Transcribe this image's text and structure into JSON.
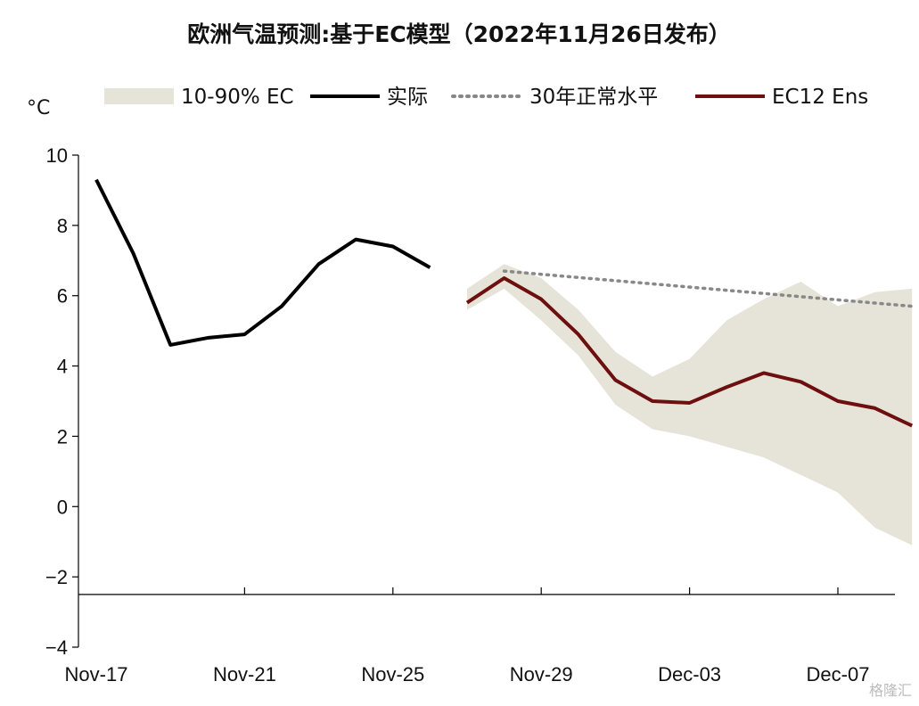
{
  "chart_data": {
    "type": "line",
    "title": "欧洲气温预测:基于EC模型（2022年11月26日发布）",
    "ylabel": "°C",
    "ylim": [
      -4,
      10
    ],
    "yticks": [
      10,
      8,
      6,
      4,
      2,
      0,
      -2,
      -4
    ],
    "x_start": "2022-11-17",
    "x_end": "2022-12-09",
    "xticks": [
      {
        "date": "2022-11-17",
        "label": "Nov-17"
      },
      {
        "date": "2022-11-21",
        "label": "Nov-21"
      },
      {
        "date": "2022-11-25",
        "label": "Nov-25"
      },
      {
        "date": "2022-11-29",
        "label": "Nov-29"
      },
      {
        "date": "2022-12-03",
        "label": "Dec-03"
      },
      {
        "date": "2022-12-07",
        "label": "Dec-07"
      }
    ],
    "legend_position": "top",
    "grid": false,
    "band": {
      "name": "10-90% EC",
      "color": "#e6e3d8",
      "x": [
        "2022-11-27",
        "2022-11-28",
        "2022-11-29",
        "2022-11-30",
        "2022-12-01",
        "2022-12-02",
        "2022-12-03",
        "2022-12-04",
        "2022-12-05",
        "2022-12-06",
        "2022-12-07",
        "2022-12-08",
        "2022-12-09"
      ],
      "upper": [
        6.2,
        6.9,
        6.5,
        5.6,
        4.4,
        3.7,
        4.2,
        5.3,
        5.9,
        6.4,
        5.7,
        6.1,
        6.2
      ],
      "lower": [
        5.6,
        6.2,
        5.3,
        4.3,
        2.9,
        2.2,
        2.0,
        1.7,
        1.4,
        0.9,
        0.4,
        -0.6,
        -1.1
      ]
    },
    "series": [
      {
        "name": "实际",
        "color": "#000000",
        "style": "solid",
        "x": [
          "2022-11-17",
          "2022-11-18",
          "2022-11-19",
          "2022-11-20",
          "2022-11-21",
          "2022-11-22",
          "2022-11-23",
          "2022-11-24",
          "2022-11-25",
          "2022-11-26"
        ],
        "values": [
          9.3,
          7.2,
          4.6,
          4.8,
          4.9,
          5.7,
          6.9,
          7.6,
          7.4,
          6.8
        ]
      },
      {
        "name": "30年正常水平",
        "color": "#888888",
        "style": "dotted",
        "x": [
          "2022-11-28",
          "2022-12-09"
        ],
        "values": [
          6.7,
          5.7
        ]
      },
      {
        "name": "EC12 Ens",
        "color": "#6e0f0f",
        "style": "solid",
        "x": [
          "2022-11-27",
          "2022-11-28",
          "2022-11-29",
          "2022-11-30",
          "2022-12-01",
          "2022-12-02",
          "2022-12-03",
          "2022-12-04",
          "2022-12-05",
          "2022-12-06",
          "2022-12-07",
          "2022-12-08",
          "2022-12-09"
        ],
        "values": [
          5.8,
          6.5,
          5.9,
          4.9,
          3.6,
          3.0,
          2.95,
          3.4,
          3.8,
          3.55,
          3.0,
          2.8,
          2.3
        ]
      }
    ]
  },
  "watermark": "格隆汇"
}
